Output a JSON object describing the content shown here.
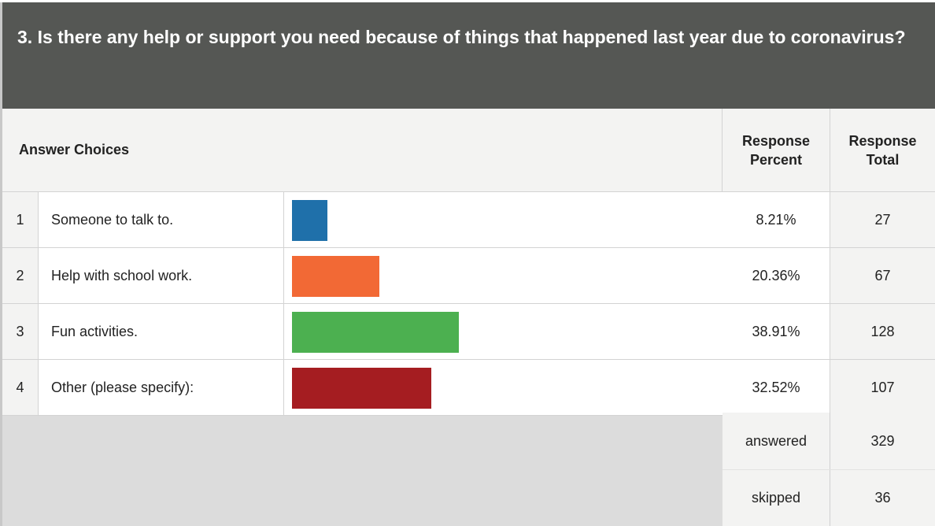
{
  "question": {
    "title": "3. Is there any help or support you need because of things that happened last year due to coronavirus?"
  },
  "headers": {
    "answer_choices": "Answer Choices",
    "response_percent_line1": "Response",
    "response_percent_line2": "Percent",
    "response_total_line1": "Response",
    "response_total_line2": "Total"
  },
  "rows": [
    {
      "num": "1",
      "label": "Someone to talk to.",
      "percent": "8.21%",
      "total": "27",
      "color": "#1f70aa"
    },
    {
      "num": "2",
      "label": "Help with school work.",
      "percent": "20.36%",
      "total": "67",
      "color": "#f26935"
    },
    {
      "num": "3",
      "label": "Fun activities.",
      "percent": "38.91%",
      "total": "128",
      "color": "#4cb050"
    },
    {
      "num": "4",
      "label": "Other (please specify):",
      "percent": "32.52%",
      "total": "107",
      "color": "#a51d21"
    }
  ],
  "summary": {
    "answered_label": "answered",
    "answered_value": "329",
    "skipped_label": "skipped",
    "skipped_value": "36"
  },
  "chart_data": {
    "type": "bar",
    "categories": [
      "Someone to talk to.",
      "Help with school work.",
      "Fun activities.",
      "Other (please specify):"
    ],
    "values": [
      8.21,
      20.36,
      38.91,
      32.52
    ],
    "totals": [
      27,
      67,
      128,
      107
    ],
    "colors": [
      "#1f70aa",
      "#f26935",
      "#4cb050",
      "#a51d21"
    ],
    "title": "3. Is there any help or support you need because of things that happened last year due to coronavirus?",
    "ylabel": "Response Percent",
    "xlim": [
      0,
      100
    ],
    "grid": false
  }
}
